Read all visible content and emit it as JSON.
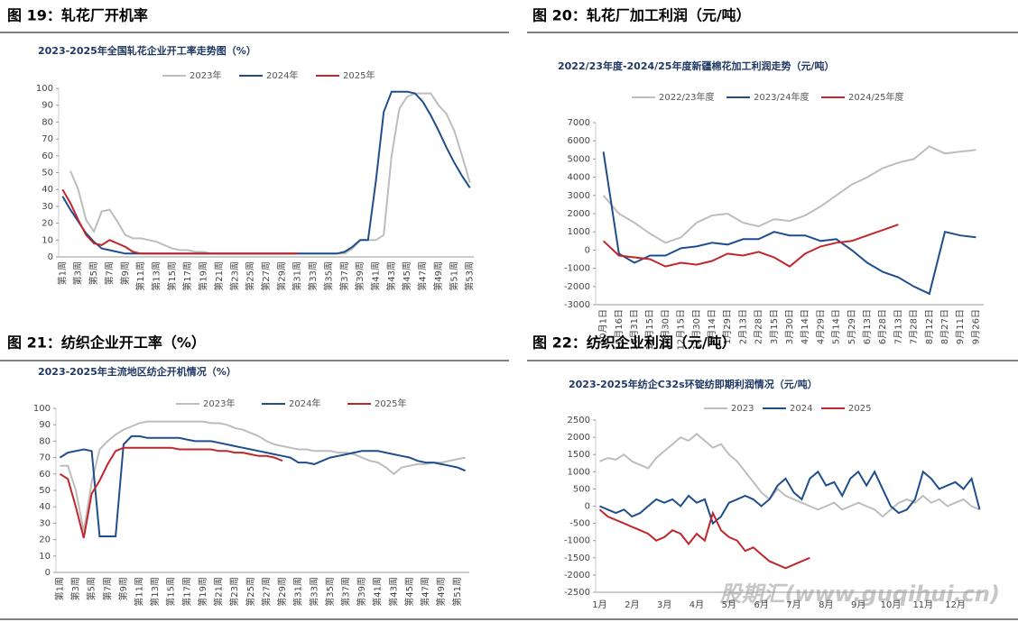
{
  "watermark": "股期汇(www.guqihui.cn)",
  "chart_data": [
    {
      "type": "line",
      "figure_title": "图 19：轧花厂开机率",
      "title": "2023-2025年全国轧花企业开工率走势图（%）",
      "categories": [
        "第1周",
        null,
        "第3周",
        null,
        "第5周",
        null,
        "第7周",
        null,
        "第9周",
        null,
        "第11周",
        null,
        "第13周",
        null,
        "第15周",
        null,
        "第17周",
        null,
        "第19周",
        null,
        "第21周",
        null,
        "第23周",
        null,
        "第25周",
        null,
        "第27周",
        null,
        "第29周",
        null,
        "第31周",
        null,
        "第33周",
        null,
        "第35周",
        null,
        "第37周",
        null,
        "第39周",
        null,
        "第41周",
        null,
        "第43周",
        null,
        "第45周",
        null,
        "第47周",
        null,
        "第49周",
        null,
        "第51周",
        null,
        "第53周"
      ],
      "ylim": [
        0,
        100
      ],
      "yticks": [
        0,
        10,
        20,
        30,
        40,
        50,
        60,
        70,
        80,
        90,
        100
      ],
      "series": [
        {
          "name": "2023年",
          "color": "#bdbdbd",
          "values": [
            null,
            51,
            40,
            22,
            15,
            27,
            28,
            21,
            13,
            11,
            11,
            10,
            9,
            7,
            5,
            4,
            4,
            3,
            3,
            2,
            2,
            2,
            2,
            2,
            2,
            2,
            2,
            2,
            2,
            2,
            2,
            2,
            2,
            2,
            2,
            2,
            2,
            5,
            10,
            10,
            10,
            13,
            60,
            88,
            95,
            97,
            97,
            97,
            90,
            85,
            75,
            60,
            44
          ]
        },
        {
          "name": "2024年",
          "color": "#1f4e8c",
          "values": [
            36,
            28,
            21,
            14,
            9,
            5,
            4,
            3,
            2,
            2,
            2,
            2,
            2,
            2,
            2,
            2,
            2,
            2,
            2,
            2,
            2,
            2,
            2,
            2,
            2,
            2,
            2,
            2,
            2,
            2,
            2,
            2,
            2,
            2,
            2,
            2,
            3,
            6,
            10,
            10,
            45,
            86,
            98,
            98,
            98,
            97,
            92,
            84,
            75,
            65,
            56,
            48,
            41
          ]
        },
        {
          "name": "2025年",
          "color": "#c0272d",
          "values": [
            40,
            32,
            22,
            13,
            8,
            7,
            10,
            8,
            6,
            3,
            2,
            2,
            2,
            2,
            2,
            2,
            2,
            2,
            2,
            2,
            2,
            2,
            2,
            2,
            2,
            2,
            2,
            2,
            2,
            2,
            2,
            null,
            null,
            null,
            null,
            null,
            null,
            null,
            null,
            null,
            null,
            null,
            null,
            null,
            null,
            null,
            null,
            null,
            null,
            null,
            null,
            null,
            null
          ]
        }
      ]
    },
    {
      "type": "line",
      "figure_title": "图 20：轧花厂加工利润（元/吨）",
      "title": "2022/23年度-2024/25年度新疆棉花加工利润走势（元/吨）",
      "categories": [
        "10月1日",
        "10月16日",
        "10月31日",
        "11月15日",
        "11月30日",
        "12月15日",
        "12月30日",
        "1月14日",
        "1月29日",
        "2月13日",
        "2月28日",
        "3月15日",
        "3月30日",
        "4月14日",
        "4月29日",
        "5月14日",
        "5月29日",
        "6月13日",
        "6月28日",
        "7月13日",
        "7月28日",
        "8月12日",
        "8月27日",
        "9月11日",
        "9月26日"
      ],
      "ylim": [
        -3000,
        7000
      ],
      "yticks": [
        -3000,
        -2000,
        -1000,
        0,
        1000,
        2000,
        3000,
        4000,
        5000,
        6000,
        7000
      ],
      "series": [
        {
          "name": "2022/23年度",
          "color": "#bdbdbd",
          "values": [
            3000,
            2000,
            1500,
            900,
            400,
            700,
            1500,
            1900,
            2000,
            1500,
            1300,
            1700,
            1600,
            1900,
            2400,
            3000,
            3600,
            4000,
            4500,
            4800,
            5000,
            5700,
            5300,
            5400,
            5500
          ]
        },
        {
          "name": "2023/24年度",
          "color": "#1f4e8c",
          "values": [
            5400,
            -200,
            -700,
            -300,
            -300,
            100,
            200,
            400,
            300,
            600,
            600,
            1000,
            800,
            800,
            500,
            600,
            0,
            -700,
            -1200,
            -1500,
            -2000,
            -2400,
            1000,
            800,
            700
          ]
        },
        {
          "name": "2024/25年度",
          "color": "#c0272d",
          "values": [
            500,
            -300,
            -400,
            -500,
            -900,
            -700,
            -800,
            -600,
            -200,
            -300,
            -100,
            -400,
            -900,
            -200,
            200,
            400,
            500,
            800,
            1100,
            1400,
            null,
            null,
            null,
            null,
            null
          ]
        }
      ]
    },
    {
      "type": "line",
      "figure_title": "图 21：纺织企业开工率（%）",
      "title": "2023-2025年主流地区纺企开机情况（%）",
      "categories": [
        "第1周",
        null,
        "第3周",
        null,
        "第5周",
        null,
        "第7周",
        null,
        "第9周",
        null,
        "第11周",
        null,
        "第13周",
        null,
        "第15周",
        null,
        "第17周",
        null,
        "第19周",
        null,
        "第21周",
        null,
        "第23周",
        null,
        "第25周",
        null,
        "第27周",
        null,
        "第29周",
        null,
        "第31周",
        null,
        "第33周",
        null,
        "第35周",
        null,
        "第37周",
        null,
        "第39周",
        null,
        "第41周",
        null,
        "第43周",
        null,
        "第45周",
        null,
        "第47周",
        null,
        "第49周",
        null,
        "第51周",
        null
      ],
      "ylim": [
        0,
        100
      ],
      "yticks": [
        0,
        10,
        20,
        30,
        40,
        50,
        60,
        70,
        80,
        90,
        100
      ],
      "series": [
        {
          "name": "2023年",
          "color": "#bdbdbd",
          "values": [
            65,
            65,
            50,
            25,
            55,
            75,
            80,
            84,
            87,
            89,
            91,
            92,
            92,
            92,
            92,
            92,
            92,
            92,
            92,
            91,
            91,
            90,
            88,
            87,
            85,
            83,
            80,
            78,
            77,
            76,
            75,
            75,
            74,
            74,
            74,
            73,
            73,
            72,
            70,
            68,
            67,
            64,
            60,
            64,
            65,
            66,
            66,
            67,
            67,
            68,
            69,
            70
          ]
        },
        {
          "name": "2024年",
          "color": "#1f4e8c",
          "values": [
            70,
            73,
            74,
            75,
            74,
            22,
            22,
            22,
            78,
            83,
            83,
            82,
            82,
            82,
            82,
            82,
            81,
            80,
            80,
            80,
            79,
            78,
            77,
            76,
            75,
            74,
            73,
            72,
            71,
            70,
            67,
            67,
            66,
            68,
            70,
            71,
            72,
            73,
            74,
            74,
            74,
            73,
            72,
            71,
            70,
            68,
            67,
            67,
            66,
            65,
            64,
            62
          ]
        },
        {
          "name": "2025年",
          "color": "#c0272d",
          "values": [
            60,
            57,
            40,
            21,
            48,
            56,
            66,
            74,
            76,
            76,
            76,
            76,
            76,
            76,
            76,
            75,
            75,
            75,
            75,
            75,
            74,
            74,
            73,
            73,
            72,
            71,
            71,
            70,
            68,
            null,
            null,
            null,
            null,
            null,
            null,
            null,
            null,
            null,
            null,
            null,
            null,
            null,
            null,
            null,
            null,
            null,
            null,
            null,
            null,
            null,
            null,
            null
          ]
        }
      ]
    },
    {
      "type": "line",
      "figure_title": "图 22：纺织企业利润（元/吨）",
      "title": "2023-2025年纺企C32s环锭纺即期利润情况（元/吨）",
      "categories": [
        "1月",
        null,
        null,
        null,
        "2月",
        null,
        null,
        null,
        "3月",
        null,
        null,
        null,
        "4月",
        null,
        null,
        null,
        "5月",
        null,
        null,
        null,
        "6月",
        null,
        null,
        null,
        "7月",
        null,
        null,
        null,
        "8月",
        null,
        null,
        null,
        "9月",
        null,
        null,
        null,
        "10月",
        null,
        null,
        null,
        "11月",
        null,
        null,
        null,
        "12月",
        null,
        null,
        null
      ],
      "ylim": [
        -2500,
        2500
      ],
      "yticks": [
        -2500,
        -2000,
        -1500,
        -1000,
        -500,
        0,
        500,
        1000,
        1500,
        2000,
        2500
      ],
      "series": [
        {
          "name": "2023",
          "color": "#bdbdbd",
          "values": [
            1300,
            1400,
            1350,
            1500,
            1300,
            1200,
            1100,
            1400,
            1600,
            1800,
            2000,
            1900,
            2100,
            1900,
            1700,
            1800,
            1500,
            1300,
            1000,
            700,
            400,
            200,
            500,
            300,
            200,
            100,
            0,
            -100,
            0,
            100,
            -100,
            0,
            100,
            0,
            -100,
            -300,
            -100,
            100,
            200,
            100,
            300,
            100,
            200,
            0,
            100,
            200,
            0,
            -100
          ]
        },
        {
          "name": "2024",
          "color": "#1f4e8c",
          "values": [
            0,
            -100,
            -200,
            -100,
            -300,
            -200,
            0,
            200,
            100,
            200,
            0,
            300,
            100,
            200,
            -500,
            -300,
            100,
            200,
            300,
            200,
            0,
            200,
            600,
            800,
            400,
            200,
            800,
            1000,
            600,
            700,
            300,
            800,
            1000,
            600,
            1000,
            500,
            0,
            -200,
            -100,
            200,
            1000,
            800,
            500,
            600,
            700,
            500,
            800,
            -100
          ]
        },
        {
          "name": "2025",
          "color": "#c0272d",
          "values": [
            -100,
            -300,
            -400,
            -500,
            -600,
            -700,
            -800,
            -1000,
            -900,
            -700,
            -800,
            -1100,
            -800,
            -1000,
            -200,
            -700,
            -900,
            -1000,
            -1300,
            -1200,
            -1400,
            -1600,
            -1700,
            -1800,
            -1700,
            -1600,
            -1500,
            null,
            null,
            null,
            null,
            null,
            null,
            null,
            null,
            null,
            null,
            null,
            null,
            null,
            null,
            null,
            null,
            null,
            null,
            null,
            null,
            null
          ]
        }
      ]
    }
  ]
}
